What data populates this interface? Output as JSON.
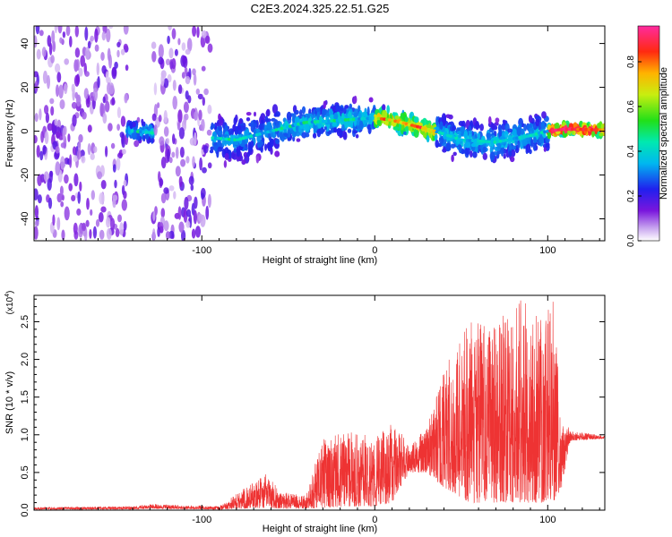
{
  "figure": {
    "title": "C2E3.2024.325.22.51.G25"
  },
  "chart_data": [
    {
      "type": "heatmap",
      "title": "C2E3.2024.325.22.51.G25",
      "xlabel": "Height of straight line (km)",
      "ylabel": "Frequency (Hz)",
      "xlim": [
        -197,
        133
      ],
      "ylim": [
        -50,
        48
      ],
      "xticks": [
        -100,
        0,
        100
      ],
      "xtick_labels": [
        "-100",
        "0",
        "100"
      ],
      "yticks": [
        -40,
        -20,
        0,
        20,
        40
      ],
      "ytick_labels": [
        "-40",
        "-20",
        "0",
        "20",
        "40"
      ],
      "colorbar": {
        "label": "Normalized spectral amplitude",
        "range": [
          0,
          0.96
        ],
        "ticks": [
          0.0,
          0.2,
          0.4,
          0.6,
          0.8
        ],
        "tick_labels": [
          "0.0",
          "0.2",
          "0.4",
          "0.6",
          "0.8"
        ],
        "colormap": "rainbow (white-violet-blue-cyan-green-yellow-red)"
      },
      "regions": [
        {
          "x": [
            -197,
            -143
          ],
          "freq_center": 0,
          "freq_spread": 48,
          "amplitude": 0.12,
          "pattern": "broadband noise"
        },
        {
          "x": [
            -143,
            -128
          ],
          "freq_center": 0,
          "freq_spread": 6,
          "amplitude": 0.28
        },
        {
          "x": [
            -128,
            -95
          ],
          "freq_center": 0,
          "freq_spread": 48,
          "amplitude": 0.12,
          "pattern": "broadband noise"
        },
        {
          "x": [
            -95,
            -55
          ],
          "freq_center": -5,
          "freq_spread": 14,
          "amplitude": 0.25
        },
        {
          "x": [
            -55,
            0
          ],
          "freq_center": 3,
          "freq_spread": 10,
          "amplitude": 0.3
        },
        {
          "x": [
            0,
            35
          ],
          "freq_center": 4,
          "freq_spread": 6,
          "amplitude": 0.55
        },
        {
          "x": [
            35,
            100
          ],
          "freq_center": -3,
          "freq_spread": 12,
          "amplitude": 0.28
        },
        {
          "x": [
            100,
            133
          ],
          "freq_center": 0.5,
          "freq_spread": 3,
          "amplitude": 0.75
        }
      ],
      "ridge": [
        [
          -140,
          0
        ],
        [
          -80,
          -4
        ],
        [
          -40,
          4
        ],
        [
          0,
          6
        ],
        [
          10,
          5
        ],
        [
          20,
          3
        ],
        [
          35,
          0
        ],
        [
          50,
          -4
        ],
        [
          70,
          -5
        ],
        [
          90,
          -2
        ],
        [
          100,
          0
        ],
        [
          110,
          1
        ],
        [
          133,
          0.5
        ]
      ]
    },
    {
      "type": "line",
      "xlabel": "Height of straight line (km)",
      "ylabel": "SNR (10 * v/v)",
      "y_multiplier": "(x10^4)",
      "xlim": [
        -197,
        133
      ],
      "ylim": [
        0,
        2.85
      ],
      "xticks": [
        -100,
        0,
        100
      ],
      "xtick_labels": [
        "-100",
        "0",
        "100"
      ],
      "yticks": [
        0.0,
        0.5,
        1.0,
        1.5,
        2.0,
        2.5
      ],
      "ytick_labels": [
        "0.0",
        "0.5",
        "1.0",
        "1.5",
        "2.0",
        "2.5"
      ],
      "series": [
        {
          "color": "#ee3333",
          "envelope": [
            {
              "x": -197,
              "low": 0.01,
              "high": 0.04
            },
            {
              "x": -140,
              "low": 0.01,
              "high": 0.05
            },
            {
              "x": -130,
              "low": 0.02,
              "high": 0.08
            },
            {
              "x": -90,
              "low": 0.01,
              "high": 0.05
            },
            {
              "x": -75,
              "low": 0.02,
              "high": 0.3
            },
            {
              "x": -62,
              "low": 0.03,
              "high": 0.5
            },
            {
              "x": -55,
              "low": 0.02,
              "high": 0.25
            },
            {
              "x": -40,
              "low": 0.02,
              "high": 0.2
            },
            {
              "x": -30,
              "low": 0.03,
              "high": 0.95
            },
            {
              "x": -15,
              "low": 0.05,
              "high": 1.05
            },
            {
              "x": 0,
              "low": 0.05,
              "high": 1.0
            },
            {
              "x": 10,
              "low": 0.1,
              "high": 1.15
            },
            {
              "x": 20,
              "low": 0.5,
              "high": 0.9
            },
            {
              "x": 30,
              "low": 0.5,
              "high": 1.1
            },
            {
              "x": 40,
              "low": 0.3,
              "high": 1.9
            },
            {
              "x": 55,
              "low": 0.1,
              "high": 2.5
            },
            {
              "x": 70,
              "low": 0.1,
              "high": 2.5
            },
            {
              "x": 85,
              "low": 0.1,
              "high": 2.8
            },
            {
              "x": 98,
              "low": 0.1,
              "high": 2.5
            },
            {
              "x": 103,
              "low": 0.1,
              "high": 2.85
            },
            {
              "x": 108,
              "low": 0.3,
              "high": 1.3
            },
            {
              "x": 113,
              "low": 0.92,
              "high": 1.05
            },
            {
              "x": 133,
              "low": 0.95,
              "high": 0.99
            }
          ]
        }
      ]
    }
  ]
}
